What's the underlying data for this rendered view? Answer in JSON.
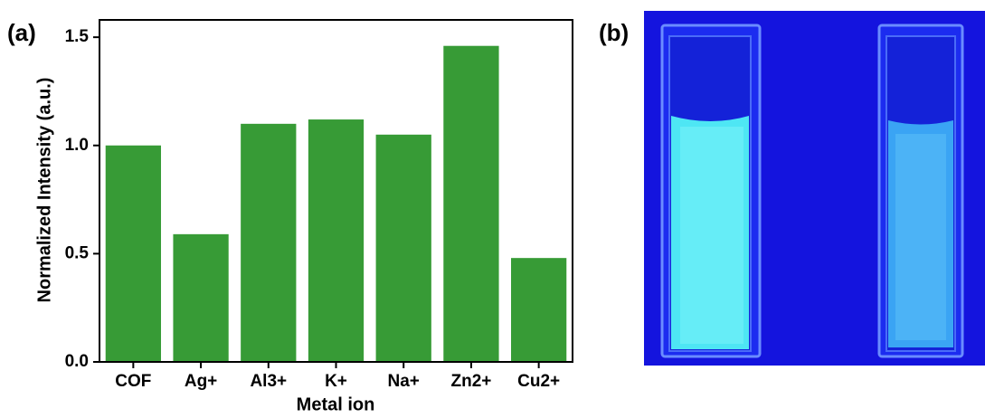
{
  "panels": {
    "a": "(a)",
    "b": "(b)"
  },
  "chart_data": {
    "type": "bar",
    "x_label": "Metal ion",
    "y_label": "Normalized Intensity (a.u.)",
    "categories": [
      "COF",
      "Ag+",
      "Al3+",
      "K+",
      "Na+",
      "Zn2+",
      "Cu2+"
    ],
    "values": [
      1.0,
      0.59,
      1.1,
      1.12,
      1.05,
      1.46,
      0.48
    ],
    "color": "#379b36",
    "ylim": [
      0,
      1.58
    ],
    "yticks": [
      {
        "value": 0,
        "label": "0.0"
      },
      0.5,
      {
        "value": 1,
        "label": "1.0"
      },
      1.5
    ],
    "grid": false
  }
}
